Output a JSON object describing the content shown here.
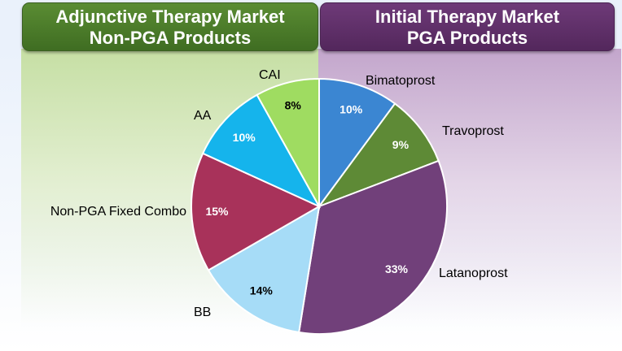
{
  "headers": {
    "left": {
      "line1": "Adjunctive Therapy Market",
      "line2": "Non-PGA Products"
    },
    "right": {
      "line1": "Initial Therapy Market",
      "line2": "PGA Products"
    }
  },
  "colors": {
    "left_header": "#4a7a2a",
    "right_header": "#5e2d68"
  },
  "chart_data": {
    "type": "pie",
    "start": "12 o'clock",
    "direction": "clockwise",
    "slices": [
      {
        "label": "Bimatoprost",
        "pct_label": "10%",
        "value": 10,
        "color": "#3b86d2",
        "pct_color": "#ffffff"
      },
      {
        "label": "Travoprost",
        "pct_label": "9%",
        "value": 9,
        "color": "#5e8a36",
        "pct_color": "#ffffff"
      },
      {
        "label": "Latanoprost",
        "pct_label": "33%",
        "value": 33,
        "color": "#71407a",
        "pct_color": "#ffffff"
      },
      {
        "label": "BB",
        "pct_label": "14%",
        "value": 14,
        "color": "#a6dcf7",
        "pct_color": "#000000"
      },
      {
        "label": "Non-PGA Fixed Combo",
        "pct_label": "15%",
        "value": 15,
        "color": "#a8325a",
        "pct_color": "#ffffff"
      },
      {
        "label": "AA",
        "pct_label": "10%",
        "value": 10,
        "color": "#15b4ec",
        "pct_color": "#ffffff"
      },
      {
        "label": "CAI",
        "pct_label": "8%",
        "value": 8,
        "color": "#9fdc61",
        "pct_color": "#000000"
      }
    ]
  }
}
